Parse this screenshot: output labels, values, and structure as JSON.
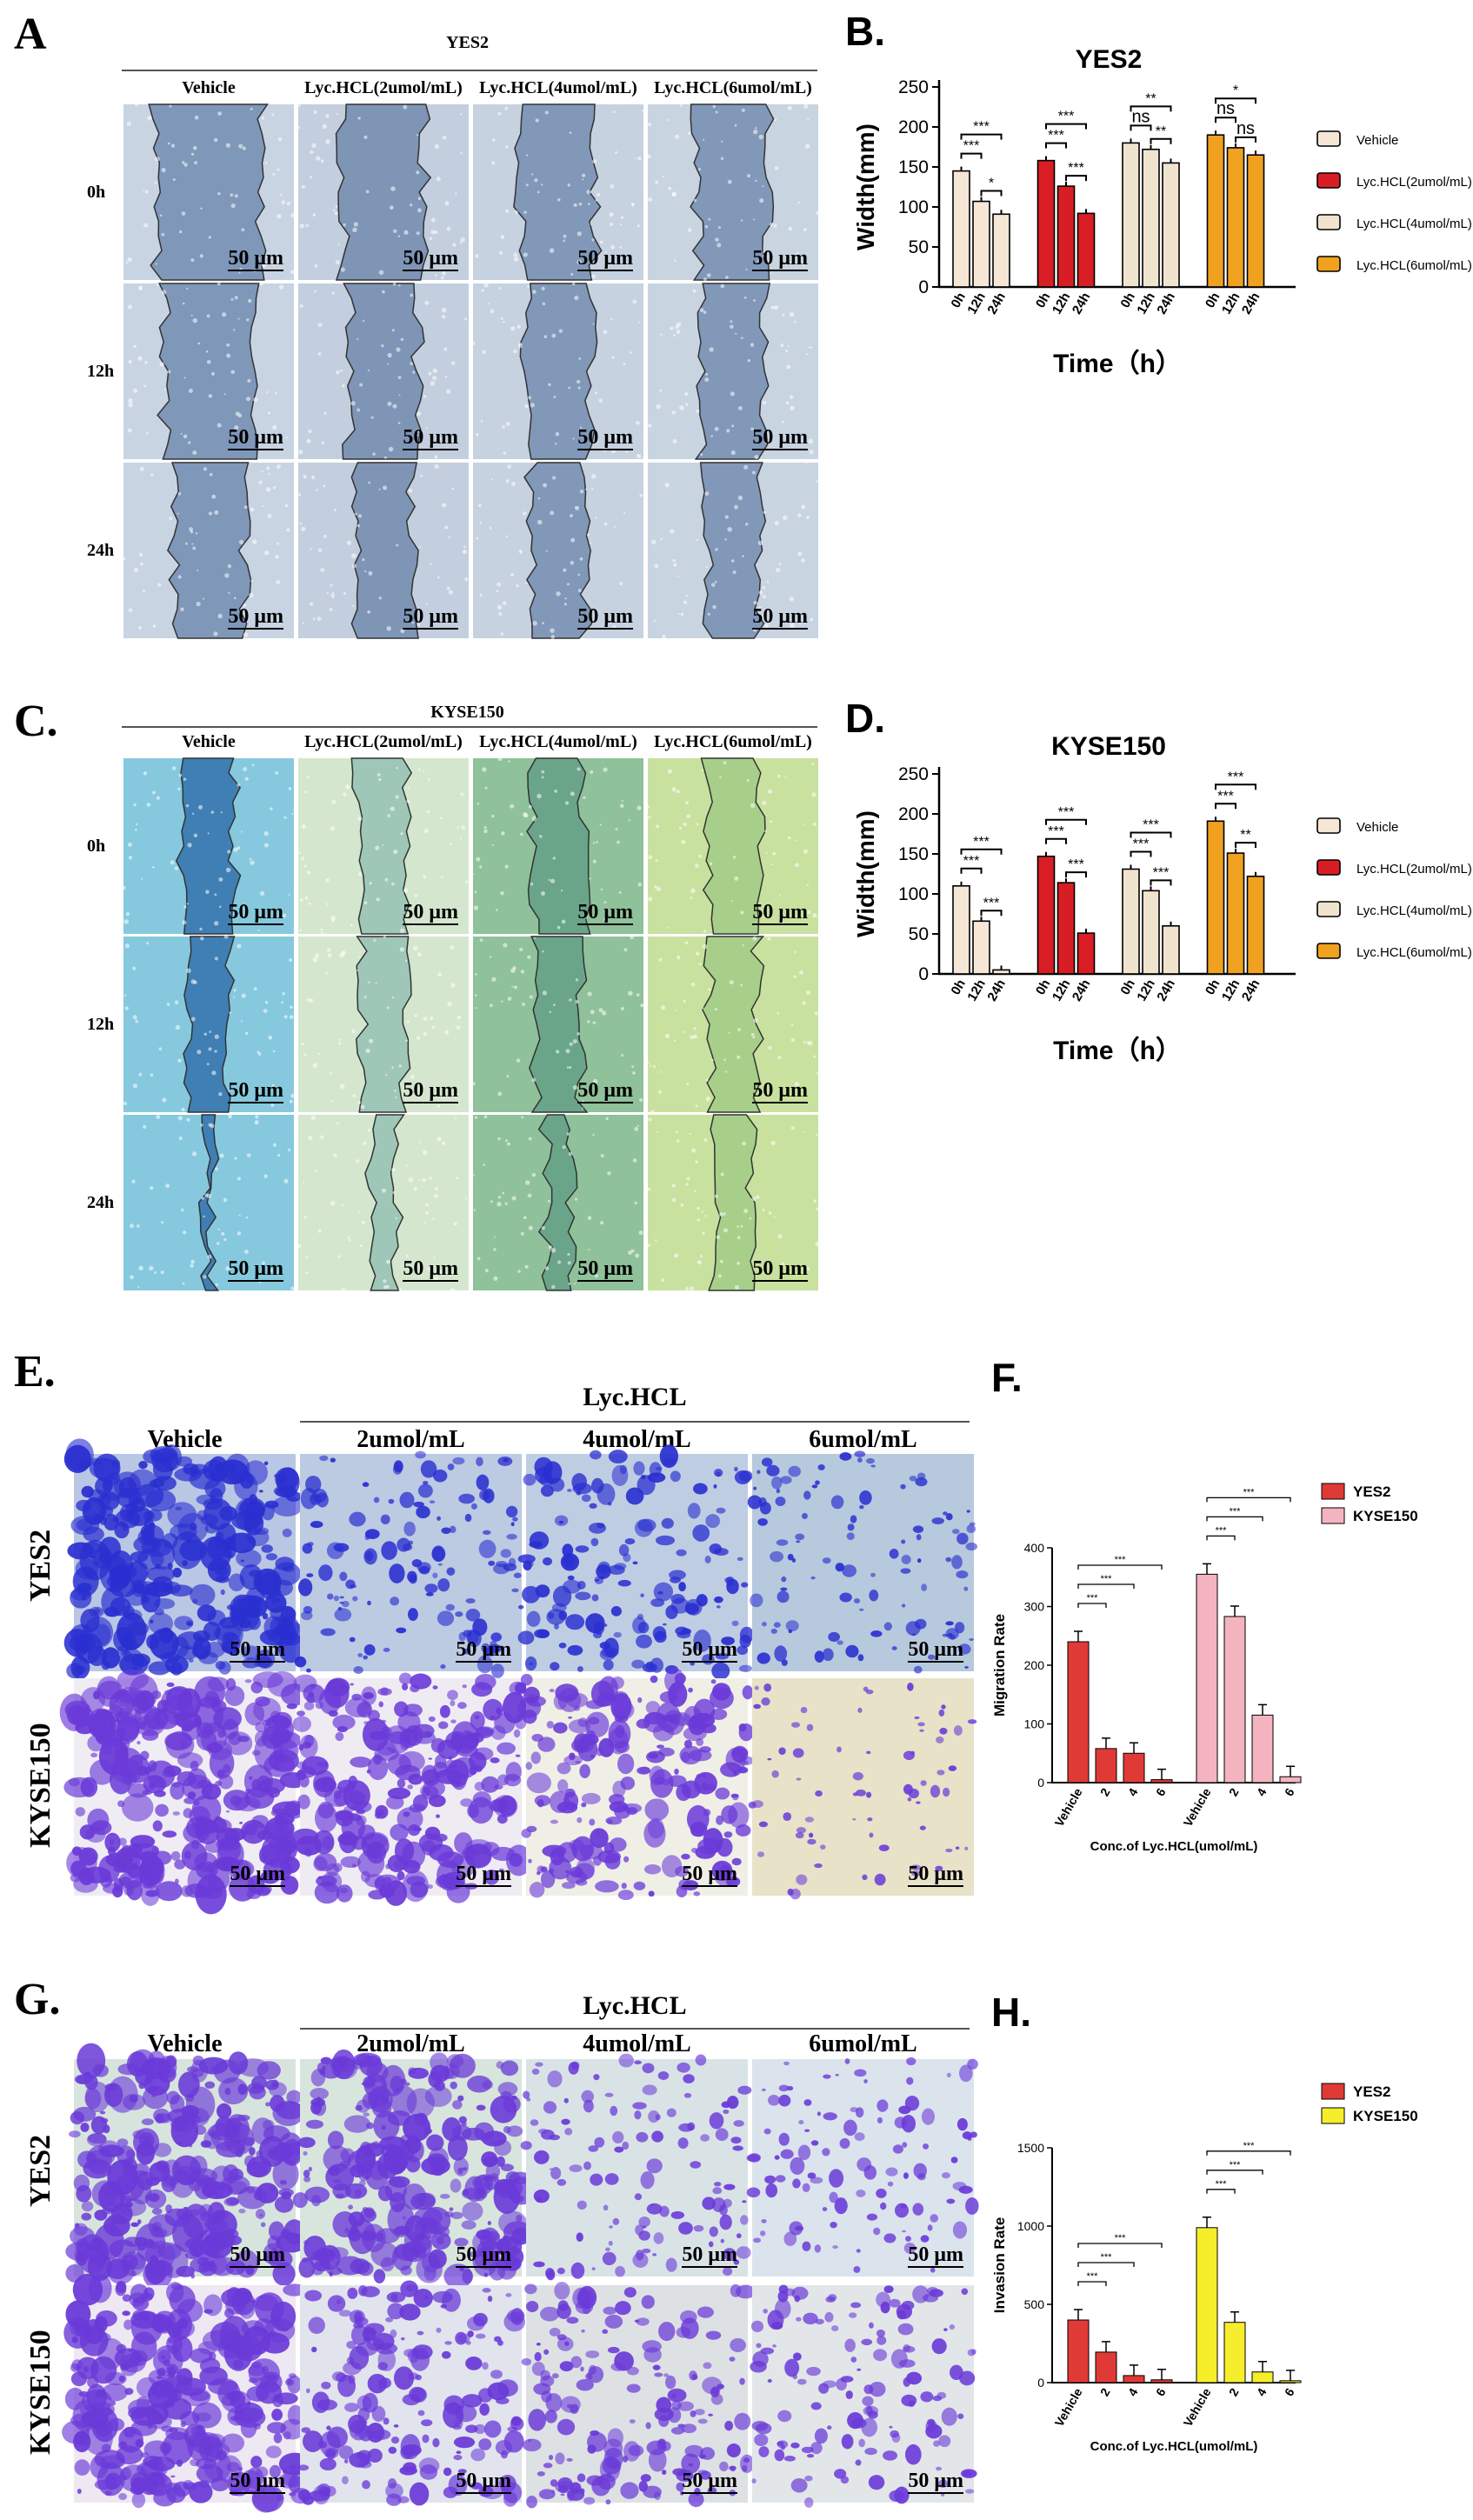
{
  "figure": {
    "panelA": {
      "letter": "A",
      "title": "YES2",
      "columns": [
        "Vehicle",
        "Lyc.HCL(2umol/mL)",
        "Lyc.HCL(4umol/mL)",
        "Lyc.HCL(6umol/mL)"
      ],
      "rows": [
        "0h",
        "12h",
        "24h"
      ],
      "scale": "50 μm"
    },
    "panelC": {
      "letter": "C.",
      "title": "KYSE150",
      "columns": [
        "Vehicle",
        "Lyc.HCL(2umol/mL)",
        "Lyc.HCL(4umol/mL)",
        "Lyc.HCL(6umol/mL)"
      ],
      "rows": [
        "0h",
        "12h",
        "24h"
      ],
      "scale": "50 μm"
    },
    "panelE": {
      "letter": "E.",
      "group": "Lyc.HCL",
      "columns": [
        "Vehicle",
        "2umol/mL",
        "4umol/mL",
        "6umol/mL"
      ],
      "rows": [
        "YES2",
        "KYSE150"
      ],
      "scale": "50 μm"
    },
    "panelG": {
      "letter": "G.",
      "group": "Lyc.HCL",
      "columns": [
        "Vehicle",
        "2umol/mL",
        "4umol/mL",
        "6umol/mL"
      ],
      "rows": [
        "YES2",
        "KYSE150"
      ],
      "scale": "50 μm"
    }
  },
  "colors": {
    "vehicle": "#f5e6d6",
    "lyc2": "#d81e24",
    "lyc4": "#f1e4cf",
    "lyc6": "#f0a11f",
    "yes2_red": "#e03a37",
    "kyse_pink": "#f4b4bf",
    "kyse_yellow": "#f6ee2a",
    "wound_yes2": "#8fa6c4",
    "wound_kyse": "#7db8cf",
    "stain_blue": "#2a2fd0",
    "stain_purple": "#6a3ad8"
  },
  "chart_data": [
    {
      "panel": "B.",
      "type": "bar",
      "title": "YES2",
      "xlabel": "Time（h）",
      "ylabel": "Width(mm)",
      "ylim": [
        0,
        250
      ],
      "yticks": [
        0,
        50,
        100,
        150,
        200,
        250
      ],
      "x_tick_labels": [
        "0h",
        "12h",
        "24h"
      ],
      "legend_position": "right",
      "groups": [
        {
          "name": "Vehicle",
          "values": [
            145,
            107,
            91
          ]
        },
        {
          "name": "Lyc.HCL(2umol/mL)",
          "values": [
            158,
            126,
            92
          ]
        },
        {
          "name": "Lyc.HCL(4umol/mL)",
          "values": [
            180,
            172,
            155
          ]
        },
        {
          "name": "Lyc.HCL(6umol/mL)",
          "values": [
            190,
            174,
            165
          ]
        }
      ],
      "annotations": [
        {
          "group": 0,
          "from": 0,
          "to": 1,
          "text": "***"
        },
        {
          "group": 0,
          "from": 0,
          "to": 2,
          "text": "***"
        },
        {
          "group": 0,
          "from": 1,
          "to": 2,
          "text": "*"
        },
        {
          "group": 1,
          "from": 0,
          "to": 1,
          "text": "***"
        },
        {
          "group": 1,
          "from": 0,
          "to": 2,
          "text": "***"
        },
        {
          "group": 1,
          "from": 1,
          "to": 2,
          "text": "***"
        },
        {
          "group": 2,
          "from": 0,
          "to": 1,
          "text": "ns"
        },
        {
          "group": 2,
          "from": 0,
          "to": 2,
          "text": "**"
        },
        {
          "group": 2,
          "from": 1,
          "to": 2,
          "text": "**"
        },
        {
          "group": 3,
          "from": 0,
          "to": 1,
          "text": "ns"
        },
        {
          "group": 3,
          "from": 0,
          "to": 2,
          "text": "*"
        },
        {
          "group": 3,
          "from": 1,
          "to": 2,
          "text": "ns"
        }
      ]
    },
    {
      "panel": "D.",
      "type": "bar",
      "title": "KYSE150",
      "xlabel": "Time（h）",
      "ylabel": "Width(mm)",
      "ylim": [
        0,
        250
      ],
      "yticks": [
        0,
        50,
        100,
        150,
        200,
        250
      ],
      "x_tick_labels": [
        "0h",
        "12h",
        "24h"
      ],
      "legend_position": "right",
      "groups": [
        {
          "name": "Vehicle",
          "values": [
            110,
            66,
            5
          ]
        },
        {
          "name": "Lyc.HCL(2umol/mL)",
          "values": [
            147,
            114,
            51
          ]
        },
        {
          "name": "Lyc.HCL(4umol/mL)",
          "values": [
            131,
            104,
            60
          ]
        },
        {
          "name": "Lyc.HCL(6umol/mL)",
          "values": [
            191,
            151,
            122
          ]
        }
      ],
      "annotations": [
        {
          "group": 0,
          "from": 0,
          "to": 1,
          "text": "***"
        },
        {
          "group": 0,
          "from": 0,
          "to": 2,
          "text": "***"
        },
        {
          "group": 0,
          "from": 1,
          "to": 2,
          "text": "***"
        },
        {
          "group": 1,
          "from": 0,
          "to": 1,
          "text": "***"
        },
        {
          "group": 1,
          "from": 0,
          "to": 2,
          "text": "***"
        },
        {
          "group": 1,
          "from": 1,
          "to": 2,
          "text": "***"
        },
        {
          "group": 2,
          "from": 0,
          "to": 1,
          "text": "***"
        },
        {
          "group": 2,
          "from": 0,
          "to": 2,
          "text": "***"
        },
        {
          "group": 2,
          "from": 1,
          "to": 2,
          "text": "***"
        },
        {
          "group": 3,
          "from": 0,
          "to": 1,
          "text": "***"
        },
        {
          "group": 3,
          "from": 0,
          "to": 2,
          "text": "***"
        },
        {
          "group": 3,
          "from": 1,
          "to": 2,
          "text": "**"
        }
      ]
    },
    {
      "panel": "F.",
      "type": "bar",
      "xlabel": "Conc.of Lyc.HCL(umol/mL)",
      "ylabel": "Migration Rate",
      "ylim": [
        0,
        400
      ],
      "yticks": [
        0,
        100,
        200,
        300,
        400
      ],
      "categories": [
        "Vehicle",
        "2",
        "4",
        "6"
      ],
      "legend_position": "right",
      "series": [
        {
          "name": "YES2",
          "values": [
            240,
            58,
            50,
            5
          ]
        },
        {
          "name": "KYSE150",
          "values": [
            355,
            283,
            115,
            10
          ]
        }
      ],
      "significance": "***"
    },
    {
      "panel": "H.",
      "type": "bar",
      "xlabel": "Conc.of Lyc.HCL(umol/mL)",
      "ylabel": "Invasion Rate",
      "ylim": [
        0,
        1500
      ],
      "yticks": [
        0,
        500,
        1000,
        1500
      ],
      "categories": [
        "Vehicle",
        "2",
        "4",
        "6"
      ],
      "legend_position": "right",
      "series": [
        {
          "name": "YES2",
          "values": [
            400,
            195,
            45,
            18
          ]
        },
        {
          "name": "KYSE150",
          "values": [
            990,
            385,
            68,
            12
          ]
        }
      ],
      "significance": "***"
    }
  ]
}
